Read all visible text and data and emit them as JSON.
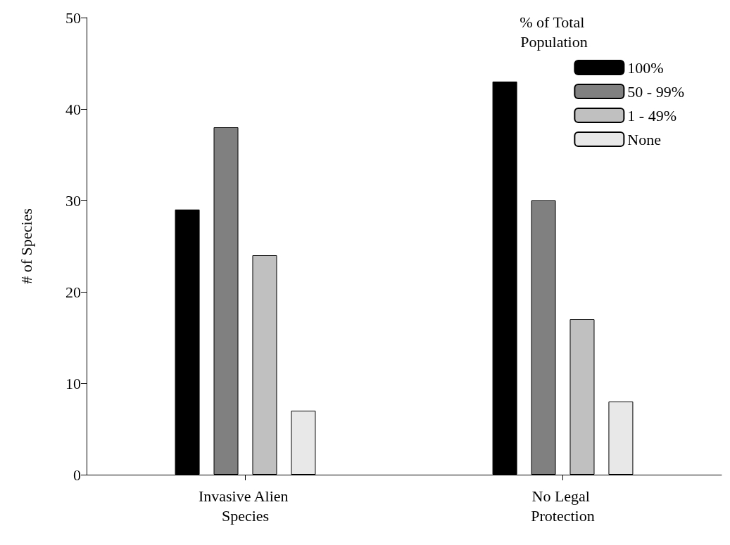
{
  "chart_data": {
    "type": "bar",
    "ylabel": "# of Species",
    "legend_title": "% of Total Population",
    "categories": [
      "Invasive Alien Species",
      "No Legal Protection"
    ],
    "series": [
      {
        "name": "100%",
        "color": "#000000",
        "values": [
          29,
          43
        ]
      },
      {
        "name": "50 - 99%",
        "color": "#808080",
        "values": [
          38,
          30
        ]
      },
      {
        "name": "1 - 49%",
        "color": "#c0c0c0",
        "values": [
          24,
          17
        ]
      },
      {
        "name": "None",
        "color": "#e8e8e8",
        "values": [
          7,
          8
        ]
      }
    ],
    "ylim": [
      0,
      50
    ],
    "yticks": [
      0,
      10,
      20,
      30,
      40,
      50
    ],
    "grid": false,
    "legend": "top right"
  }
}
